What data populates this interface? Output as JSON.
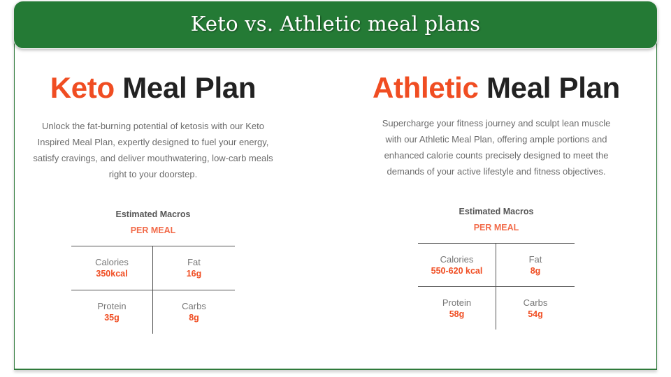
{
  "slide": {
    "title": "Keto vs. Athletic meal plans",
    "colors": {
      "banner": "#247a35",
      "accent": "#f04d22",
      "dark": "#222222"
    }
  },
  "plans": [
    {
      "title_accent": "Keto",
      "title_rest": " Meal Plan",
      "description": "Unlock the fat-burning potential of ketosis with our Keto Inspired Meal Plan, expertly designed to fuel your energy, satisfy cravings, and deliver mouthwatering, low-carb meals right to your doorstep.",
      "macros_title": "Estimated Macros",
      "macros_subtitle": "PER MEAL",
      "macros": [
        {
          "label": "Calories",
          "value": "350kcal"
        },
        {
          "label": "Fat",
          "value": "16g"
        },
        {
          "label": "Protein",
          "value": "35g"
        },
        {
          "label": "Carbs",
          "value": "8g"
        }
      ]
    },
    {
      "title_accent": "Athletic",
      "title_rest": " Meal Plan",
      "description": "Supercharge your fitness journey and sculpt lean muscle with our Athletic Meal Plan, offering ample portions and enhanced calorie counts precisely designed to meet the demands of your active lifestyle and fitness objectives.",
      "macros_title": "Estimated Macros",
      "macros_subtitle": "PER MEAL",
      "macros": [
        {
          "label": "Calories",
          "value": "550-620 kcal"
        },
        {
          "label": "Fat",
          "value": "8g"
        },
        {
          "label": "Protein",
          "value": "58g"
        },
        {
          "label": "Carbs",
          "value": "54g"
        }
      ]
    }
  ]
}
